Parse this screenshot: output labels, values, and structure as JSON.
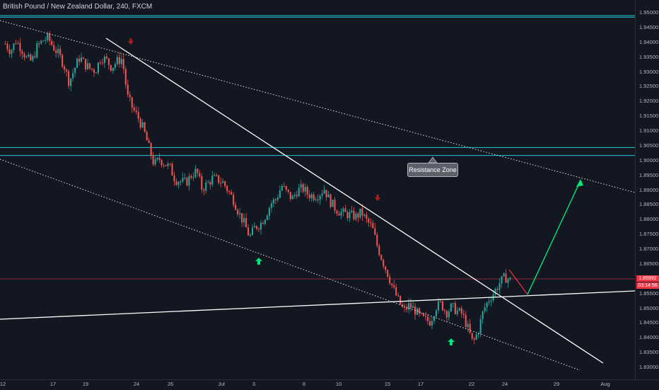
{
  "header": {
    "title": "British Pound / New Zealand Dollar, 240, FXCM"
  },
  "price_axis": {
    "ticks": [
      "1.95000",
      "1.94500",
      "1.94000",
      "1.93500",
      "1.93000",
      "1.92500",
      "1.92000",
      "1.91500",
      "1.91000",
      "1.90500",
      "1.90000",
      "1.89500",
      "1.89000",
      "1.88500",
      "1.88000",
      "1.87500",
      "1.87000",
      "1.86500",
      "1.86000",
      "1.85500",
      "1.85000",
      "1.84500",
      "1.84000",
      "1.83500",
      "1.83000"
    ],
    "current_price": "1.85992",
    "countdown": "03:14:56"
  },
  "time_axis": {
    "ticks": [
      "12",
      "17",
      "19",
      "24",
      "26",
      "Jul",
      "3",
      "8",
      "10",
      "15",
      "17",
      "22",
      "24",
      "29",
      "Aug"
    ]
  },
  "annotations": {
    "resistance_label": "Resistance Zone"
  },
  "colors": {
    "background": "#131722",
    "up_candle": "#26a69a",
    "down_candle": "#ef5350",
    "zone_line": "#26c6da",
    "trendline": "#ffffff",
    "projection_up": "#00e676",
    "projection_down": "#f23645",
    "arrow_up": "#00e676",
    "arrow_down": "#b71c1c",
    "price_line": "#f23645"
  },
  "chart_data": {
    "type": "candlestick",
    "symbol": "British Pound / New Zealand Dollar",
    "interval": "240",
    "source": "FXCM",
    "ylim": [
      1.828,
      1.952
    ],
    "x_ticks": [
      "12",
      "17",
      "19",
      "24",
      "26",
      "Jul",
      "3",
      "8",
      "10",
      "15",
      "17",
      "22",
      "24",
      "29",
      "Aug"
    ],
    "resistance_zones": [
      [
        1.9485,
        1.949
      ],
      [
        1.9017,
        1.9044
      ]
    ],
    "current_price": 1.85992,
    "close_path": [
      1.9395,
      1.937,
      1.9405,
      1.938,
      1.9345,
      1.9335,
      1.9385,
      1.9405,
      1.9415,
      1.9385,
      1.936,
      1.9325,
      1.9265,
      1.931,
      1.935,
      1.9325,
      1.931,
      1.9305,
      1.935,
      1.934,
      1.9315,
      1.9335,
      1.9345,
      1.9215,
      1.9175,
      1.9145,
      1.9105,
      1.9045,
      1.8985,
      1.9005,
      1.899,
      1.8975,
      1.8935,
      1.893,
      1.8925,
      1.895,
      1.8965,
      1.8905,
      1.892,
      1.894,
      1.8935,
      1.8925,
      1.8895,
      1.8865,
      1.882,
      1.8785,
      1.874,
      1.8775,
      1.8785,
      1.8815,
      1.8855,
      1.887,
      1.8915,
      1.889,
      1.887,
      1.89,
      1.8905,
      1.8885,
      1.888,
      1.8885,
      1.8905,
      1.8865,
      1.884,
      1.8825,
      1.882,
      1.8815,
      1.881,
      1.8825,
      1.8795,
      1.8775,
      1.871,
      1.866,
      1.8615,
      1.8565,
      1.8525,
      1.849,
      1.851,
      1.8495,
      1.847,
      1.846,
      1.8455,
      1.8505,
      1.8515,
      1.8485,
      1.8505,
      1.849,
      1.848,
      1.8435,
      1.838,
      1.8425,
      1.8495,
      1.853,
      1.8555,
      1.8585,
      1.8605,
      1.8595
    ]
  }
}
